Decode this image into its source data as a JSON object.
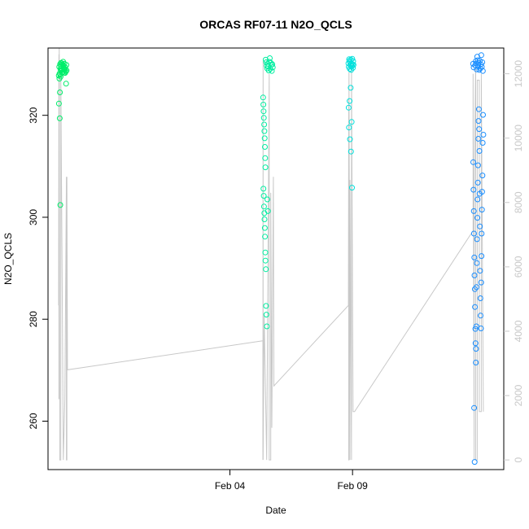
{
  "chart_data": {
    "type": "scatter",
    "title": "ORCAS RF07-11 N2O_QCLS",
    "xlabel": "Date",
    "ylabel": "N2O_QCLS",
    "xlim": [
      "2016-01-27T14:00",
      "2016-02-15T04:00"
    ],
    "ylim": [
      250.5,
      333.2
    ],
    "y2lim": [
      -300,
      12800
    ],
    "x_ticks": [
      {
        "label": "Feb 04",
        "value": "2016-02-04T00:00"
      },
      {
        "label": "Feb 09",
        "value": "2016-02-09T00:00"
      }
    ],
    "y_ticks": [
      {
        "label": "260",
        "value": 260
      },
      {
        "label": "280",
        "value": 280
      },
      {
        "label": "300",
        "value": 300
      },
      {
        "label": "320",
        "value": 320
      }
    ],
    "y2_ticks": [
      {
        "label": "0",
        "value": 0
      },
      {
        "label": "2000",
        "value": 2000
      },
      {
        "label": "4000",
        "value": 4000
      },
      {
        "label": "6000",
        "value": 6000
      },
      {
        "label": "8000",
        "value": 8000
      },
      {
        "label": "10000",
        "value": 10000
      },
      {
        "label": "12000",
        "value": 12000
      }
    ],
    "colors": {
      "flight_1": "#00ee6a",
      "flight_2": "#00eea0",
      "flight_3": "#00e0dc",
      "flight_4": "#1a8eff",
      "altitude_line": "#c8c8c8",
      "axis": "#000000",
      "secondary_axis": "#c8c8c8"
    },
    "series": [
      {
        "color": "#00ee6a",
        "x": [
          "2016-01-28T01:00",
          "2016-01-28T01:20",
          "2016-01-28T01:45",
          "2016-01-28T02:10",
          "2016-01-28T02:30",
          "2016-01-28T03:00",
          "2016-01-28T03:30",
          "2016-01-28T04:00",
          "2016-01-28T04:30",
          "2016-01-28T05:00",
          "2016-01-28T05:30",
          "2016-01-28T06:00",
          "2016-01-28T06:30",
          "2016-01-28T07:00",
          "2016-01-28T07:30",
          "2016-01-28T08:00",
          "2016-01-28T01:10",
          "2016-01-28T01:50",
          "2016-01-28T02:20",
          "2016-01-28T03:40",
          "2016-01-28T04:50",
          "2016-01-28T05:40",
          "2016-01-28T06:40",
          "2016-01-28T00:40",
          "2016-01-28T00:30",
          "2016-01-28T01:30",
          "2016-01-28T01:40",
          "2016-01-28T02:00",
          "2016-01-28T07:40",
          "2016-01-28T08:10",
          "2016-01-28T02:40",
          "2016-01-28T05:10",
          "2016-01-28T06:10",
          "2016-01-28T03:10",
          "2016-01-28T04:10"
        ],
        "y": [
          329.5,
          328.2,
          330.0,
          329.1,
          328.8,
          329.6,
          330.2,
          329.0,
          328.5,
          329.8,
          329.3,
          330.1,
          328.9,
          329.4,
          328.6,
          329.9,
          327.2,
          328.0,
          327.6,
          328.4,
          330.5,
          329.0,
          328.3,
          322.3,
          327.8,
          319.4,
          324.5,
          302.4,
          326.2,
          328.8,
          330.3,
          329.7,
          328.4,
          329.2,
          330.0
        ]
      },
      {
        "color": "#00eea0",
        "x": [
          "2016-02-05T08:30",
          "2016-02-05T08:45",
          "2016-02-05T09:00",
          "2016-02-05T09:15",
          "2016-02-05T09:30",
          "2016-02-05T09:45",
          "2016-02-05T10:00",
          "2016-02-05T10:15",
          "2016-02-05T10:30",
          "2016-02-05T10:45",
          "2016-02-05T11:00",
          "2016-02-05T11:30",
          "2016-02-05T12:00",
          "2016-02-05T12:30",
          "2016-02-05T13:00",
          "2016-02-05T13:30",
          "2016-02-05T14:00",
          "2016-02-05T14:30",
          "2016-02-05T15:00",
          "2016-02-05T15:30",
          "2016-02-05T16:00",
          "2016-02-05T16:30",
          "2016-02-05T17:00",
          "2016-02-05T17:30",
          "2016-02-05T18:00",
          "2016-02-05T08:50",
          "2016-02-05T09:10",
          "2016-02-05T09:20",
          "2016-02-05T09:40",
          "2016-02-05T09:50",
          "2016-02-05T10:10",
          "2016-02-05T10:20",
          "2016-02-05T10:40",
          "2016-02-05T10:50",
          "2016-02-05T11:10",
          "2016-02-05T11:20",
          "2016-02-05T11:40",
          "2016-02-05T12:10",
          "2016-02-05T12:40",
          "2016-02-05T13:10"
        ],
        "y": [
          323.5,
          322.1,
          320.8,
          319.5,
          318.2,
          316.9,
          315.5,
          313.8,
          311.6,
          309.8,
          330.9,
          330.4,
          329.7,
          329.2,
          330.1,
          329.6,
          328.8,
          330.5,
          331.2,
          329.1,
          330.3,
          329.9,
          328.7,
          330.0,
          329.4,
          305.6,
          304.2,
          302.1,
          300.8,
          299.6,
          297.9,
          296.2,
          293.1,
          291.5,
          289.8,
          282.6,
          280.9,
          278.6,
          303.5,
          301.2
        ]
      },
      {
        "color": "#00e0dc",
        "x": [
          "2016-02-08T20:00",
          "2016-02-08T20:20",
          "2016-02-08T20:40",
          "2016-02-08T21:00",
          "2016-02-08T21:20",
          "2016-02-08T21:40",
          "2016-02-08T22:00",
          "2016-02-08T22:20",
          "2016-02-08T22:40",
          "2016-02-08T23:00",
          "2016-02-08T23:20",
          "2016-02-08T23:40",
          "2016-02-09T00:00",
          "2016-02-09T00:20",
          "2016-02-09T00:40",
          "2016-02-09T01:00",
          "2016-02-08T20:10",
          "2016-02-08T20:30",
          "2016-02-08T21:10",
          "2016-02-08T21:30",
          "2016-02-08T22:10",
          "2016-02-08T22:30",
          "2016-02-08T23:10",
          "2016-02-08T23:30"
        ],
        "y": [
          330.2,
          329.5,
          331.0,
          330.7,
          329.1,
          330.4,
          329.8,
          330.9,
          328.9,
          330.1,
          329.6,
          331.1,
          330.0,
          329.3,
          330.6,
          329.9,
          321.5,
          317.6,
          322.8,
          315.3,
          325.4,
          312.9,
          318.7,
          305.8
        ]
      },
      {
        "color": "#1a8eff",
        "x": [
          "2016-02-13T22:00",
          "2016-02-13T22:30",
          "2016-02-13T23:00",
          "2016-02-13T23:30",
          "2016-02-14T00:00",
          "2016-02-14T00:30",
          "2016-02-14T01:00",
          "2016-02-14T01:30",
          "2016-02-14T02:00",
          "2016-02-14T02:30",
          "2016-02-14T03:00",
          "2016-02-14T03:30",
          "2016-02-14T04:00",
          "2016-02-14T04:30",
          "2016-02-14T05:00",
          "2016-02-14T05:30",
          "2016-02-14T06:00",
          "2016-02-14T06:30",
          "2016-02-14T07:00",
          "2016-02-14T07:30",
          "2016-02-13T22:10",
          "2016-02-13T22:20",
          "2016-02-13T22:40",
          "2016-02-13T22:50",
          "2016-02-13T23:10",
          "2016-02-13T23:20",
          "2016-02-13T23:40",
          "2016-02-13T23:50",
          "2016-02-14T00:10",
          "2016-02-14T00:20",
          "2016-02-14T00:40",
          "2016-02-14T00:50",
          "2016-02-14T01:10",
          "2016-02-14T01:20",
          "2016-02-14T01:40",
          "2016-02-14T01:50",
          "2016-02-14T02:10",
          "2016-02-14T02:20",
          "2016-02-14T02:40",
          "2016-02-14T02:50",
          "2016-02-14T03:10",
          "2016-02-14T03:20",
          "2016-02-14T03:40",
          "2016-02-14T03:50",
          "2016-02-14T04:10",
          "2016-02-14T04:20",
          "2016-02-14T04:40",
          "2016-02-14T04:50",
          "2016-02-14T05:10",
          "2016-02-14T05:20",
          "2016-02-14T05:40",
          "2016-02-14T05:50",
          "2016-02-14T06:10",
          "2016-02-14T06:20",
          "2016-02-14T06:40",
          "2016-02-14T06:50",
          "2016-02-14T07:10",
          "2016-02-14T07:20",
          "2016-02-14T07:40",
          "2016-02-14T08:00"
        ],
        "y": [
          330.1,
          329.4,
          262.6,
          252.0,
          329.8,
          330.6,
          330.2,
          329.0,
          331.5,
          330.8,
          329.6,
          330.3,
          328.9,
          330.7,
          329.2,
          330.0,
          331.8,
          329.5,
          330.4,
          328.7,
          310.8,
          305.4,
          301.2,
          296.8,
          292.1,
          288.6,
          285.9,
          282.4,
          278.1,
          275.3,
          271.5,
          274.2,
          278.6,
          286.3,
          291.0,
          295.7,
          299.9,
          303.5,
          306.8,
          310.2,
          315.4,
          318.9,
          321.2,
          317.3,
          313.0,
          304.6,
          298.2,
          289.5,
          284.1,
          280.7,
          278.2,
          287.2,
          292.4,
          296.8,
          301.5,
          305.0,
          308.2,
          314.6,
          320.1,
          316.2
        ]
      }
    ],
    "altitude_line": {
      "color": "#c8c8c8",
      "x": [
        "2016-01-28T00:20",
        "2016-01-28T00:40",
        "2016-01-28T00:40",
        "2016-01-28T01:00",
        "2016-01-28T01:00",
        "2016-01-28T01:30",
        "2016-01-28T01:30",
        "2016-01-28T02:30",
        "2016-01-28T02:30",
        "2016-01-28T05:00",
        "2016-01-28T05:00",
        "2016-01-28T06:30",
        "2016-01-28T06:30",
        "2016-01-28T08:00",
        "2016-01-28T08:00",
        "2016-01-28T08:30",
        "2016-01-28T08:30",
        "2016-01-28T09:00",
        "2016-02-05T08:00",
        "2016-02-05T08:15",
        "2016-02-05T08:15",
        "2016-02-05T08:30",
        "2016-02-05T08:30",
        "2016-02-05T09:30",
        "2016-02-05T09:30",
        "2016-02-05T12:00",
        "2016-02-05T12:00",
        "2016-02-05T14:30",
        "2016-02-05T14:30",
        "2016-02-05T16:00",
        "2016-02-05T16:00",
        "2016-02-05T17:00",
        "2016-02-05T17:00",
        "2016-02-05T18:30",
        "2016-02-05T19:00",
        "2016-02-08T20:00",
        "2016-02-08T20:15",
        "2016-02-08T20:15",
        "2016-02-08T20:30",
        "2016-02-08T20:30",
        "2016-02-08T21:30",
        "2016-02-08T21:30",
        "2016-02-08T23:00",
        "2016-02-08T23:00",
        "2016-02-09T00:30",
        "2016-02-09T01:30",
        "2016-02-09T02:00",
        "2016-02-13T21:30",
        "2016-02-13T22:00",
        "2016-02-13T22:00",
        "2016-02-13T23:00",
        "2016-02-13T23:00",
        "2016-02-14T00:30",
        "2016-02-14T00:30",
        "2016-02-14T02:00",
        "2016-02-14T02:00",
        "2016-02-14T04:00",
        "2016-02-14T04:00",
        "2016-02-14T06:00",
        "2016-02-14T06:00",
        "2016-02-14T08:00"
      ],
      "y": [
        4800,
        12600,
        1900,
        1900,
        12800,
        1900,
        0,
        0,
        12000,
        0,
        0,
        1900,
        1900,
        8800,
        0,
        0,
        8800,
        2800,
        3700,
        3700,
        0,
        12400,
        0,
        4500,
        4500,
        0,
        0,
        12000,
        0,
        0,
        8300,
        1000,
        1000,
        8800,
        2300,
        4800,
        11200,
        0,
        0,
        12400,
        0,
        8700,
        0,
        12400,
        1500,
        1500,
        1500,
        7100,
        7100,
        12000,
        0,
        8400,
        12400,
        0,
        0,
        11800,
        11800,
        1500,
        1500,
        12000,
        1500
      ]
    }
  }
}
